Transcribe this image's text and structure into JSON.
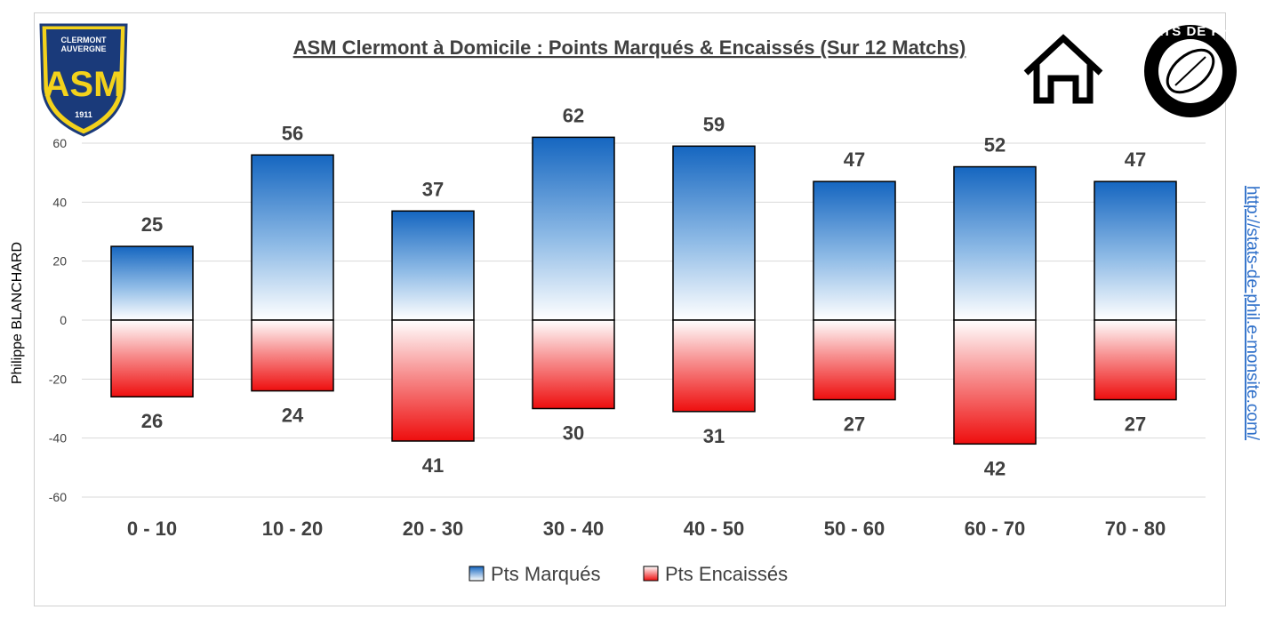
{
  "chart_data": {
    "type": "bar",
    "title": "ASM Clermont à Domicile : Points Marqués & Encaissés (Sur 12 Matchs)",
    "categories": [
      "0 - 10",
      "10 - 20",
      "20 - 30",
      "30 - 40",
      "40 - 50",
      "50 - 60",
      "60 - 70",
      "70 - 80"
    ],
    "series": [
      {
        "name": "Pts Marqués",
        "values": [
          25,
          56,
          37,
          62,
          59,
          47,
          52,
          47
        ],
        "color": "#1f6fc4"
      },
      {
        "name": "Pts Encaissés",
        "values": [
          -26,
          -24,
          -41,
          -30,
          -31,
          -27,
          -42,
          -27
        ],
        "color": "#ee1111"
      }
    ],
    "data_labels": {
      "marques": [
        "25",
        "56",
        "37",
        "62",
        "59",
        "47",
        "52",
        "47"
      ],
      "encaisses": [
        "26",
        "24",
        "41",
        "30",
        "31",
        "27",
        "42",
        "27"
      ]
    },
    "ylim": [
      -60,
      60
    ],
    "yticks": [
      60,
      40,
      20,
      0,
      -20,
      -40,
      -60
    ],
    "ytick_labels": [
      "60",
      "40",
      "20",
      "0",
      "-20",
      "-40",
      "-60"
    ],
    "grid": true,
    "legend_position": "bottom"
  },
  "side": {
    "author": "Philippe BLANCHARD",
    "url": "http://stats-de-phil.e-monsite.com/"
  },
  "logos": {
    "club_top": "CLERMONT",
    "club_top2": "AUVERGNE",
    "club_year": "1911",
    "stats_logo": "STATS DE PHIL",
    "club_icon": "asm-clermont-crest-icon",
    "home_icon": "home-icon",
    "rugby_icon": "rugby-ball-icon"
  }
}
